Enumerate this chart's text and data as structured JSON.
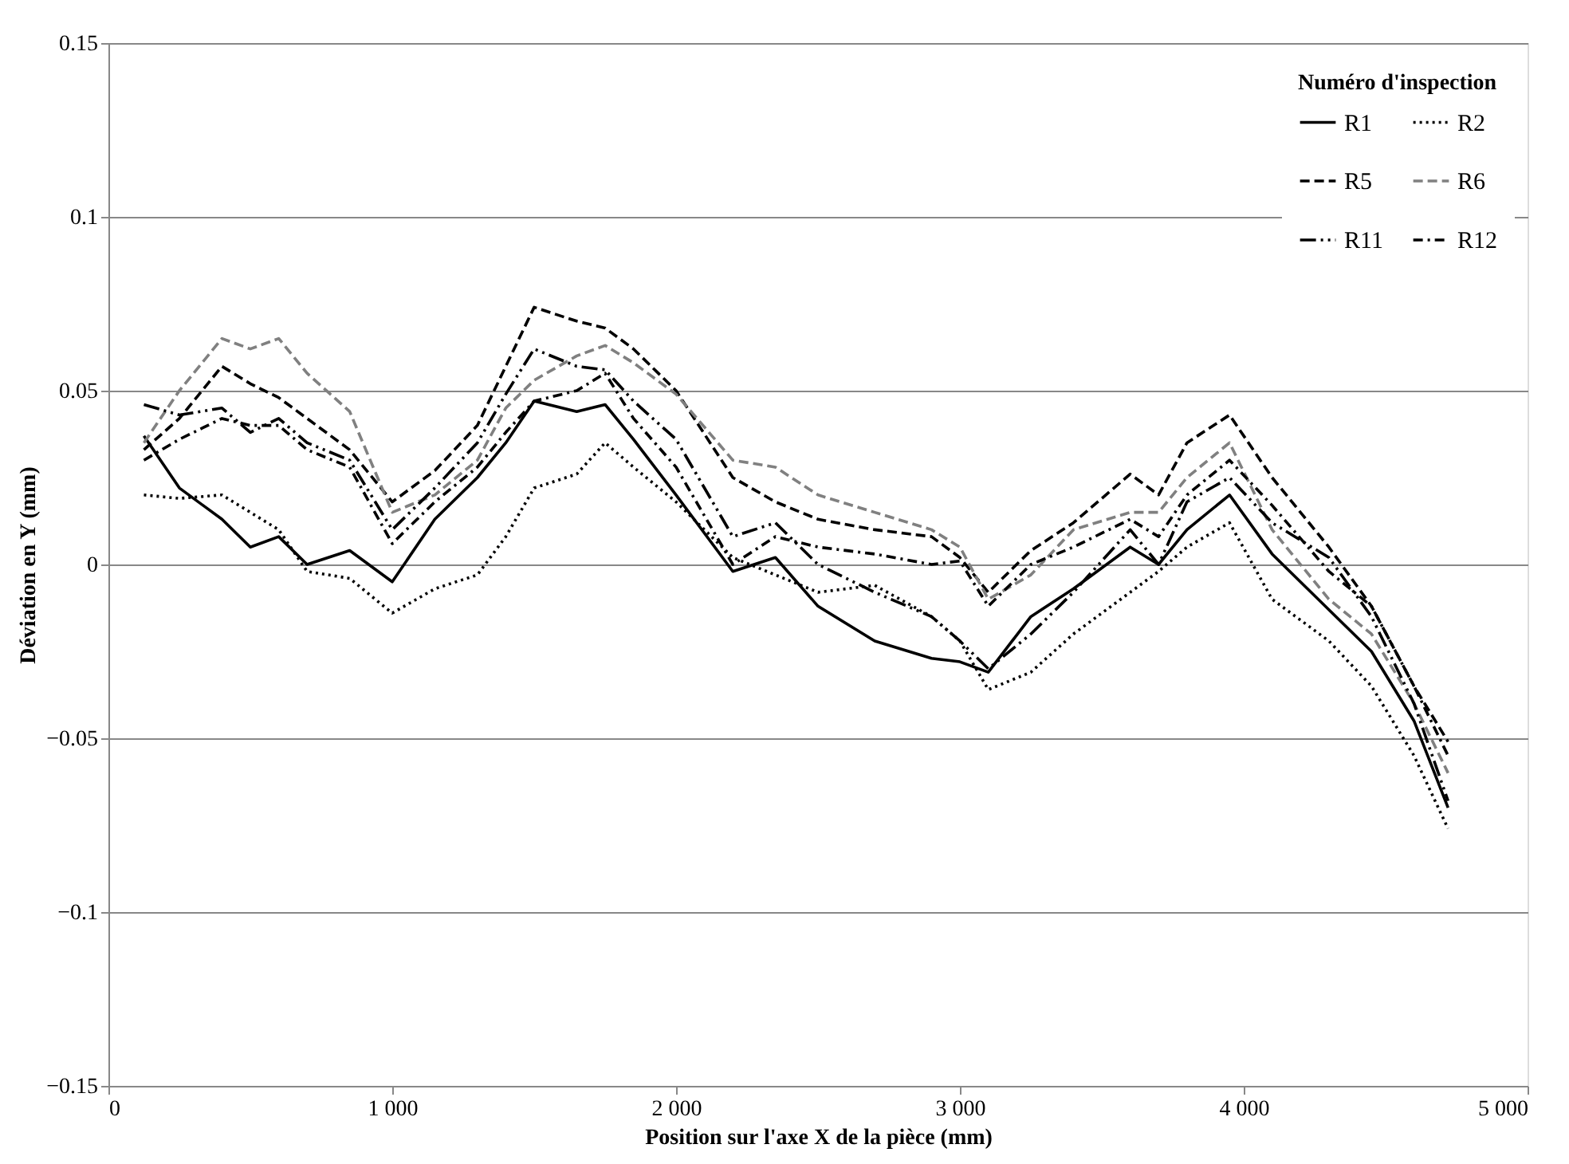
{
  "chart_data": {
    "type": "line",
    "xlabel": "Position sur l'axe X de la pièce (mm)",
    "ylabel": "Déviation en Y (mm)",
    "legend_title": "Numéro d'inspection",
    "legend": "top right",
    "grid": "y",
    "marker": "none",
    "x": [
      125,
      250,
      400,
      500,
      600,
      700,
      850,
      1000,
      1150,
      1300,
      1400,
      1500,
      1650,
      1750,
      1850,
      2000,
      2200,
      2350,
      2500,
      2700,
      2900,
      3000,
      3100,
      3250,
      3400,
      3600,
      3700,
      3800,
      3950,
      4100,
      4300,
      4450,
      4600,
      4720
    ],
    "xlim": [
      0,
      5000
    ],
    "xticks": [
      0,
      {
        "value": 1000,
        "label": "1 000"
      },
      {
        "value": 2000,
        "label": "2 000"
      },
      {
        "value": 3000,
        "label": "3 000"
      },
      {
        "value": 4000,
        "label": "4 000"
      },
      {
        "value": 5000,
        "label": "5 000"
      }
    ],
    "ylim": [
      -0.15,
      0.15
    ],
    "yticks": [
      -0.15,
      -0.1,
      -0.05,
      0,
      0.05,
      0.1,
      0.15
    ],
    "series": [
      {
        "name": "R1",
        "color": "#000000",
        "line_style": "solid",
        "values": [
          0.037,
          0.022,
          0.013,
          0.005,
          0.008,
          0.0,
          0.004,
          -0.005,
          0.013,
          0.025,
          0.035,
          0.047,
          0.044,
          0.046,
          0.036,
          0.02,
          -0.002,
          0.002,
          -0.012,
          -0.022,
          -0.027,
          -0.028,
          -0.031,
          -0.015,
          -0.007,
          0.005,
          0.0,
          0.01,
          0.02,
          0.003,
          -0.013,
          -0.025,
          -0.045,
          -0.07
        ]
      },
      {
        "name": "R2",
        "color": "#000000",
        "line_style": "dotted",
        "values": [
          0.02,
          0.019,
          0.02,
          0.015,
          0.01,
          -0.002,
          -0.004,
          -0.014,
          -0.007,
          -0.003,
          0.008,
          0.022,
          0.026,
          0.035,
          0.028,
          0.018,
          0.002,
          -0.003,
          -0.008,
          -0.006,
          -0.015,
          -0.022,
          -0.036,
          -0.031,
          -0.02,
          -0.008,
          -0.002,
          0.005,
          0.012,
          -0.01,
          -0.022,
          -0.035,
          -0.055,
          -0.076
        ]
      },
      {
        "name": "R5",
        "color": "#000000",
        "line_style": "dashed",
        "values": [
          0.033,
          0.042,
          0.057,
          0.052,
          0.048,
          0.042,
          0.033,
          0.018,
          0.027,
          0.04,
          0.057,
          0.074,
          0.07,
          0.068,
          0.062,
          0.05,
          0.025,
          0.018,
          0.013,
          0.01,
          0.008,
          0.002,
          -0.008,
          0.004,
          0.012,
          0.026,
          0.02,
          0.035,
          0.043,
          0.025,
          0.005,
          -0.012,
          -0.035,
          -0.051
        ]
      },
      {
        "name": "R6",
        "color": "#808080",
        "line_style": "dashed",
        "values": [
          0.035,
          0.05,
          0.065,
          0.062,
          0.065,
          0.055,
          0.044,
          0.015,
          0.02,
          0.03,
          0.045,
          0.053,
          0.06,
          0.063,
          0.058,
          0.049,
          0.03,
          0.028,
          0.02,
          0.015,
          0.01,
          0.005,
          -0.01,
          -0.003,
          0.01,
          0.015,
          0.015,
          0.025,
          0.035,
          0.01,
          -0.01,
          -0.02,
          -0.04,
          -0.06
        ]
      },
      {
        "name": "R11",
        "color": "#000000",
        "line_style": "dashdotdot",
        "values": [
          0.046,
          0.043,
          0.045,
          0.038,
          0.042,
          0.035,
          0.03,
          0.01,
          0.022,
          0.035,
          0.049,
          0.062,
          0.057,
          0.056,
          0.047,
          0.036,
          0.008,
          0.012,
          0.0,
          -0.008,
          -0.015,
          -0.022,
          -0.03,
          -0.02,
          -0.008,
          0.01,
          0.0,
          0.018,
          0.025,
          0.012,
          0.002,
          -0.015,
          -0.04,
          -0.068
        ]
      },
      {
        "name": "R12",
        "color": "#000000",
        "line_style": "dashdot",
        "values": [
          0.03,
          0.036,
          0.042,
          0.04,
          0.04,
          0.033,
          0.028,
          0.006,
          0.018,
          0.028,
          0.038,
          0.047,
          0.05,
          0.055,
          0.042,
          0.028,
          0.0,
          0.008,
          0.005,
          0.003,
          0.0,
          0.001,
          -0.012,
          0.0,
          0.005,
          0.013,
          0.008,
          0.02,
          0.03,
          0.017,
          -0.002,
          -0.012,
          -0.035,
          -0.055
        ]
      }
    ]
  }
}
